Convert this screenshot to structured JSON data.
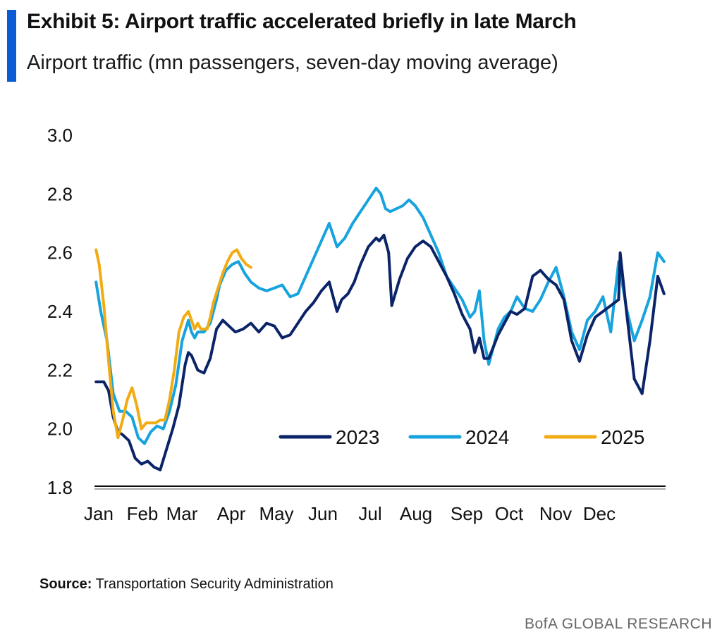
{
  "header": {
    "title": "Exhibit 5: Airport traffic accelerated briefly in late March",
    "subtitle": "Airport traffic (mn passengers, seven-day moving average)"
  },
  "footer": {
    "source_label": "Source:",
    "source_text": "Transportation Security Administration",
    "brand": "BofA GLOBAL RESEARCH"
  },
  "colors": {
    "accent": "#0a5bd4",
    "series_2023": "#0b2468",
    "series_2024": "#16a3de",
    "series_2025": "#f2ab13"
  },
  "chart_data": {
    "type": "line",
    "categories": [
      "Jan",
      "Feb",
      "Mar",
      "Apr",
      "May",
      "Jun",
      "Jul",
      "Aug",
      "Sep",
      "Oct",
      "Nov",
      "Dec"
    ],
    "ylim": [
      1.8,
      3.0
    ],
    "yticks": [
      "1.8",
      "2.0",
      "2.2",
      "2.4",
      "2.6",
      "2.8",
      "3.0"
    ],
    "grid": false,
    "legend_position": "lower-right",
    "series": [
      {
        "name": "2023",
        "x": [
          1,
          6,
          9,
          12,
          15,
          18,
          22,
          26,
          30,
          34,
          38,
          42,
          46,
          50,
          54,
          58,
          60,
          62,
          66,
          70,
          74,
          78,
          82,
          86,
          90,
          95,
          100,
          105,
          110,
          115,
          120,
          125,
          130,
          135,
          140,
          145,
          150,
          155,
          158,
          162,
          166,
          170,
          175,
          180,
          182,
          185,
          188,
          190,
          195,
          200,
          205,
          210,
          215,
          220,
          225,
          230,
          235,
          240,
          243,
          246,
          249,
          252,
          255,
          258,
          262,
          266,
          270,
          275,
          280,
          285,
          290,
          295,
          300,
          305,
          310,
          315,
          320,
          325,
          330,
          335,
          336,
          340,
          345,
          350,
          355,
          360,
          364
        ],
        "values": [
          2.16,
          2.16,
          2.13,
          2.04,
          1.99,
          1.98,
          1.96,
          1.9,
          1.88,
          1.89,
          1.87,
          1.86,
          1.93,
          2.0,
          2.08,
          2.22,
          2.26,
          2.25,
          2.2,
          2.19,
          2.24,
          2.34,
          2.37,
          2.35,
          2.33,
          2.34,
          2.36,
          2.33,
          2.36,
          2.35,
          2.31,
          2.32,
          2.36,
          2.4,
          2.43,
          2.47,
          2.5,
          2.4,
          2.44,
          2.46,
          2.5,
          2.56,
          2.62,
          2.65,
          2.64,
          2.66,
          2.6,
          2.42,
          2.51,
          2.58,
          2.62,
          2.64,
          2.62,
          2.57,
          2.52,
          2.46,
          2.39,
          2.34,
          2.26,
          2.31,
          2.24,
          2.24,
          2.28,
          2.32,
          2.36,
          2.4,
          2.39,
          2.41,
          2.52,
          2.54,
          2.51,
          2.49,
          2.44,
          2.3,
          2.23,
          2.32,
          2.38,
          2.4,
          2.42,
          2.44,
          2.6,
          2.4,
          2.17,
          2.12,
          2.3,
          2.52,
          2.46
        ]
      },
      {
        "name": "2024",
        "x": [
          1,
          4,
          8,
          12,
          16,
          20,
          24,
          28,
          32,
          36,
          40,
          44,
          48,
          52,
          56,
          60,
          62,
          64,
          66,
          70,
          74,
          78,
          80,
          84,
          88,
          92,
          96,
          100,
          105,
          110,
          115,
          120,
          125,
          130,
          135,
          140,
          145,
          150,
          155,
          160,
          165,
          170,
          175,
          180,
          183,
          186,
          189,
          193,
          197,
          201,
          205,
          210,
          215,
          220,
          225,
          230,
          235,
          240,
          243,
          246,
          249,
          252,
          255,
          258,
          262,
          266,
          270,
          275,
          280,
          285,
          290,
          295,
          300,
          305,
          310,
          315,
          320,
          325,
          330,
          335,
          340,
          345,
          350,
          355,
          360,
          364
        ],
        "values": [
          2.5,
          2.4,
          2.3,
          2.12,
          2.06,
          2.06,
          2.04,
          1.97,
          1.95,
          1.99,
          2.01,
          2.0,
          2.06,
          2.15,
          2.3,
          2.37,
          2.33,
          2.31,
          2.33,
          2.33,
          2.36,
          2.44,
          2.49,
          2.54,
          2.56,
          2.57,
          2.53,
          2.5,
          2.48,
          2.47,
          2.48,
          2.49,
          2.45,
          2.46,
          2.52,
          2.58,
          2.64,
          2.7,
          2.62,
          2.65,
          2.7,
          2.74,
          2.78,
          2.82,
          2.8,
          2.75,
          2.74,
          2.75,
          2.76,
          2.78,
          2.76,
          2.72,
          2.66,
          2.6,
          2.52,
          2.48,
          2.44,
          2.38,
          2.4,
          2.47,
          2.3,
          2.22,
          2.28,
          2.34,
          2.38,
          2.4,
          2.45,
          2.41,
          2.4,
          2.44,
          2.5,
          2.55,
          2.45,
          2.33,
          2.27,
          2.37,
          2.4,
          2.45,
          2.33,
          2.57,
          2.41,
          2.3,
          2.37,
          2.45,
          2.6,
          2.57
        ]
      },
      {
        "name": "2025",
        "x": [
          1,
          3,
          6,
          9,
          12,
          15,
          18,
          21,
          24,
          27,
          30,
          33,
          36,
          39,
          42,
          45,
          48,
          51,
          54,
          57,
          60,
          62,
          64,
          66,
          68,
          70,
          72,
          74,
          76,
          79,
          82,
          85,
          88,
          91,
          94,
          97,
          100
        ],
        "values": [
          2.61,
          2.56,
          2.42,
          2.23,
          2.06,
          1.97,
          2.03,
          2.1,
          2.14,
          2.08,
          2.0,
          2.02,
          2.02,
          2.02,
          2.03,
          2.03,
          2.1,
          2.2,
          2.33,
          2.38,
          2.4,
          2.37,
          2.34,
          2.36,
          2.34,
          2.34,
          2.34,
          2.38,
          2.43,
          2.48,
          2.53,
          2.57,
          2.6,
          2.61,
          2.58,
          2.56,
          2.55
        ]
      }
    ]
  }
}
